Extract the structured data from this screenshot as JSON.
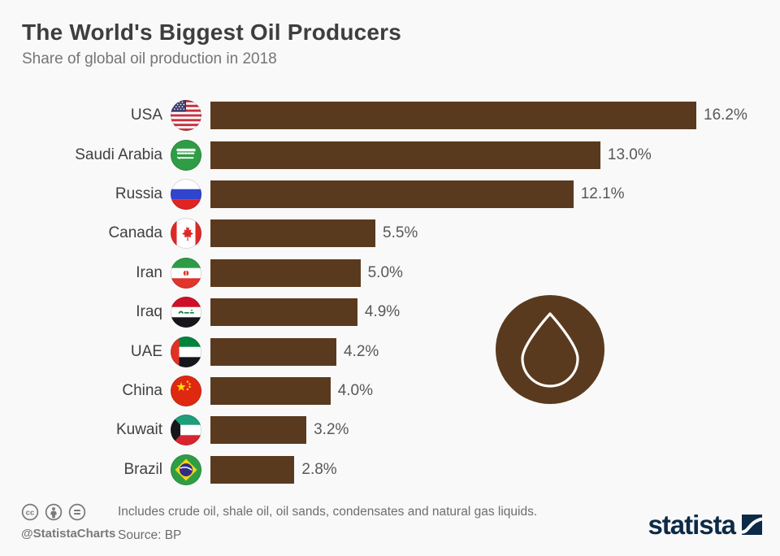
{
  "header": {
    "title": "The World's Biggest Oil Producers",
    "subtitle": "Share of global oil production in 2018"
  },
  "chart_data": {
    "type": "bar",
    "orientation": "horizontal",
    "title": "The World's Biggest Oil Producers",
    "subtitle": "Share of global oil production in 2018",
    "unit": "%",
    "categories": [
      "USA",
      "Saudi Arabia",
      "Russia",
      "Canada",
      "Iran",
      "Iraq",
      "UAE",
      "China",
      "Kuwait",
      "Brazil"
    ],
    "values": [
      16.2,
      13.0,
      12.1,
      5.5,
      5.0,
      4.9,
      4.2,
      4.0,
      3.2,
      2.8
    ],
    "labels": [
      "16.2%",
      "13.0%",
      "12.1%",
      "5.5%",
      "5.0%",
      "4.9%",
      "4.2%",
      "4.0%",
      "3.2%",
      "2.8%"
    ],
    "flags": [
      "usa",
      "saudi-arabia",
      "russia",
      "canada",
      "iran",
      "iraq",
      "uae",
      "china",
      "kuwait",
      "brazil"
    ],
    "xlabel": "",
    "ylabel": "",
    "xlim": [
      0,
      16.2
    ],
    "grid": false,
    "legend": false,
    "bar_color": "#5A3A1E"
  },
  "decoration": {
    "badge_icon": "oil-drop-icon",
    "badge_color": "#5A3A1E"
  },
  "footer": {
    "license_icons": [
      "cc-icon",
      "attribution-icon",
      "no-derivatives-icon"
    ],
    "handle": "@StatistaCharts",
    "note": "Includes crude oil, shale oil, oil sands, condensates and natural gas liquids.",
    "source": "Source: BP",
    "brand": "statista",
    "brand_color": "#0d2a47"
  }
}
